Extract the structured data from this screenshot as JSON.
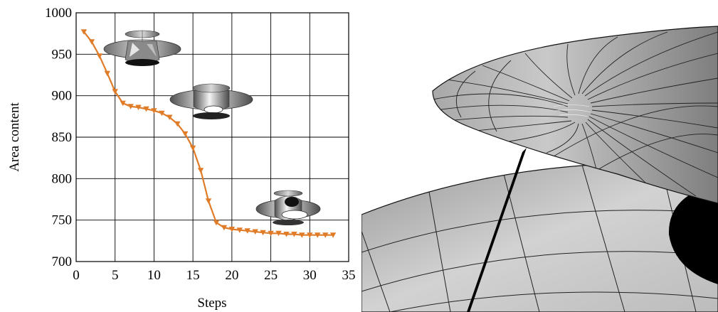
{
  "chart_data": {
    "type": "line",
    "title": "",
    "xlabel": "Steps",
    "ylabel": "Area content",
    "xlim": [
      0,
      35
    ],
    "ylim": [
      700,
      1000
    ],
    "xticks": [
      0,
      5,
      10,
      15,
      20,
      25,
      30,
      35
    ],
    "yticks": [
      700,
      750,
      800,
      850,
      900,
      950,
      1000
    ],
    "grid": true,
    "series_color": "#e07b28",
    "marker": "triangle-down",
    "series": [
      {
        "x": [
          1,
          2,
          3,
          4,
          5,
          6,
          7,
          8,
          9,
          10,
          11,
          12,
          13,
          14,
          15,
          16,
          17,
          18,
          19,
          20,
          21,
          22,
          23,
          24,
          25,
          26,
          27,
          28,
          29,
          30,
          31,
          32,
          33
        ],
        "values": [
          977,
          965,
          948,
          927,
          905,
          891,
          887,
          886,
          884,
          882,
          879,
          874,
          866,
          854,
          837,
          810,
          773,
          747,
          741,
          739,
          738,
          737,
          736,
          735,
          734,
          734,
          733,
          733,
          732,
          732,
          732,
          732,
          732
        ]
      }
    ]
  },
  "figure": {
    "insets": [
      "surface-inset-early",
      "surface-inset-middle",
      "surface-inset-late"
    ],
    "right_panel": "surface-closeup-render"
  }
}
